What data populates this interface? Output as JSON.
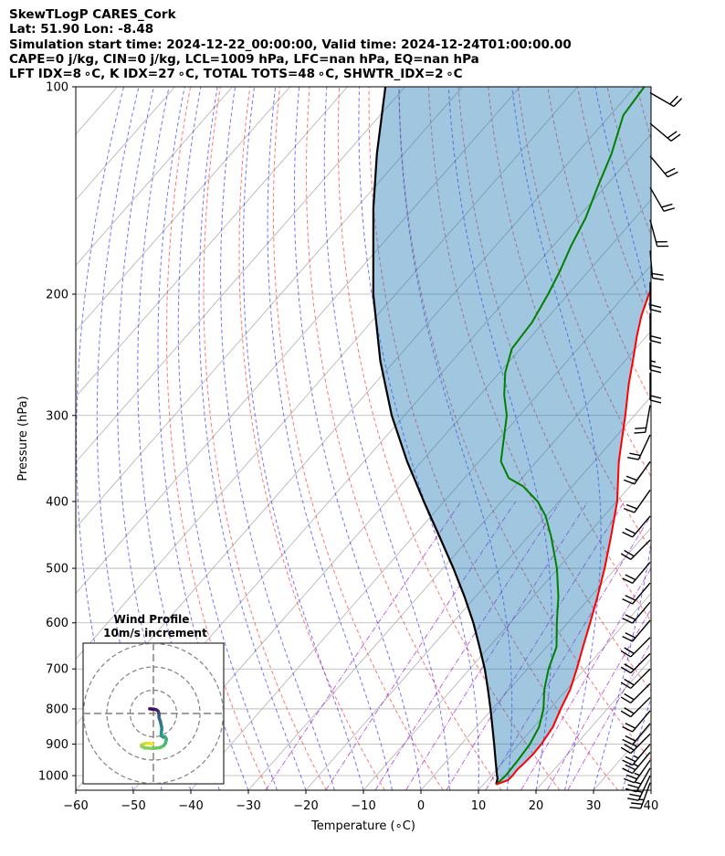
{
  "title": {
    "line1": "SkewTLogP CARES_Cork",
    "line2": "Lat: 51.90   Lon: -8.48",
    "line3": "Simulation start time: 2024-12-22_00:00:00, Valid time: 2024-12-24T01:00:00.00",
    "line4": "CAPE=0 j/kg, CIN=0 j/kg, LCL=1009 hPa, LFC=nan hPa, EQ=nan hPa",
    "line5": "LFT IDX=8 ∘C, K IDX=27 ∘C, TOTAL TOTS=48 ∘C, SHWTR_IDX=2 ∘C"
  },
  "chart_data": {
    "type": "skew-t log-p",
    "xlabel": "Temperature (∘C)",
    "ylabel": "Pressure (hPa)",
    "xlim": [
      -60,
      40
    ],
    "ylim": [
      1050,
      100
    ],
    "x_ticks": [
      "−60",
      "−50",
      "−40",
      "−30",
      "−20",
      "−10",
      "0",
      "10",
      "20",
      "30",
      "40"
    ],
    "x_tick_values": [
      -60,
      -50,
      -40,
      -30,
      -20,
      -10,
      0,
      10,
      20,
      30,
      40
    ],
    "y_ticks": [
      "100",
      "200",
      "300",
      "400",
      "500",
      "600",
      "700",
      "800",
      "900",
      "1000"
    ],
    "y_tick_values": [
      100,
      200,
      300,
      400,
      500,
      600,
      700,
      800,
      900,
      1000
    ],
    "skew_deg_per_decade": 105,
    "colors": {
      "temperature": "#ff0000",
      "dewpoint": "#008000",
      "parcel": "#000000",
      "shade": "#1f77b4",
      "dry_adiabat": "#ff0000",
      "moist_adiabat": "#0000ff",
      "isotherm": "#808080",
      "mixing_ratio": "#9400d3",
      "wind_barb": "#000000"
    },
    "temperature": {
      "name": "Temperature",
      "p": [
        1030,
        1015,
        1000,
        980,
        960,
        930,
        900,
        850,
        800,
        750,
        700,
        650,
        600,
        550,
        500,
        450,
        400,
        350,
        300,
        270,
        250,
        230,
        215,
        200,
        185,
        175,
        165,
        155,
        145,
        135,
        120,
        110,
        100
      ],
      "t": [
        12.2,
        13.6,
        13.7,
        13.6,
        13.8,
        14.0,
        13.9,
        13.3,
        11.9,
        10.6,
        8.6,
        6.3,
        3.9,
        1.2,
        -1.9,
        -5.6,
        -9.9,
        -15.7,
        -21.6,
        -25.8,
        -28.6,
        -31.7,
        -34.0,
        -36.0,
        -37.4,
        -38.1,
        -38.4,
        -39.2,
        -40.0,
        -41.6,
        -44.5,
        -46.4,
        -48.4
      ]
    },
    "dewpoint": {
      "name": "Dewpoint",
      "p": [
        1030,
        1000,
        950,
        900,
        850,
        800,
        750,
        700,
        650,
        600,
        550,
        500,
        450,
        420,
        400,
        380,
        370,
        350,
        330,
        300,
        280,
        260,
        240,
        220,
        200,
        185,
        170,
        155,
        140,
        125,
        110,
        100
      ],
      "t": [
        12.2,
        12.5,
        12.3,
        11.9,
        10.9,
        8.9,
        6.1,
        3.7,
        1.7,
        -1.9,
        -5.6,
        -10.2,
        -16.0,
        -20.1,
        -23.7,
        -28.6,
        -32.3,
        -36.2,
        -38.5,
        -42.2,
        -45.8,
        -49.0,
        -51.5,
        -52.0,
        -53.5,
        -55.0,
        -56.9,
        -58.6,
        -61.2,
        -63.9,
        -67.7,
        -68.4
      ]
    },
    "parcel": {
      "name": "Parcel profile",
      "p": [
        1030,
        1009,
        1000,
        950,
        900,
        850,
        800,
        750,
        700,
        650,
        600,
        550,
        500,
        450,
        400,
        350,
        300,
        250,
        200,
        150,
        125,
        100
      ],
      "t": [
        12.2,
        11.5,
        11.0,
        8.4,
        5.7,
        2.8,
        -0.3,
        -3.7,
        -7.4,
        -11.7,
        -16.4,
        -21.9,
        -28.2,
        -35.4,
        -43.5,
        -52.5,
        -62.2,
        -72.5,
        -83.9,
        -97.0,
        -104.7,
        -113.4
      ]
    },
    "wind_barbs": [
      {
        "p": 1024,
        "speed_kt": 25,
        "dir_deg": 200
      },
      {
        "p": 1000,
        "speed_kt": 25,
        "dir_deg": 205
      },
      {
        "p": 975,
        "speed_kt": 25,
        "dir_deg": 210
      },
      {
        "p": 950,
        "speed_kt": 25,
        "dir_deg": 215
      },
      {
        "p": 925,
        "speed_kt": 25,
        "dir_deg": 220
      },
      {
        "p": 900,
        "speed_kt": 25,
        "dir_deg": 220
      },
      {
        "p": 870,
        "speed_kt": 25,
        "dir_deg": 225
      },
      {
        "p": 840,
        "speed_kt": 20,
        "dir_deg": 220
      },
      {
        "p": 805,
        "speed_kt": 20,
        "dir_deg": 220
      },
      {
        "p": 770,
        "speed_kt": 20,
        "dir_deg": 225
      },
      {
        "p": 735,
        "speed_kt": 20,
        "dir_deg": 225
      },
      {
        "p": 700,
        "speed_kt": 20,
        "dir_deg": 225
      },
      {
        "p": 665,
        "speed_kt": 20,
        "dir_deg": 225
      },
      {
        "p": 630,
        "speed_kt": 20,
        "dir_deg": 225
      },
      {
        "p": 595,
        "speed_kt": 20,
        "dir_deg": 220
      },
      {
        "p": 560,
        "speed_kt": 20,
        "dir_deg": 220
      },
      {
        "p": 525,
        "speed_kt": 20,
        "dir_deg": 220
      },
      {
        "p": 490,
        "speed_kt": 20,
        "dir_deg": 220
      },
      {
        "p": 455,
        "speed_kt": 20,
        "dir_deg": 225
      },
      {
        "p": 420,
        "speed_kt": 20,
        "dir_deg": 220
      },
      {
        "p": 385,
        "speed_kt": 20,
        "dir_deg": 215
      },
      {
        "p": 350,
        "speed_kt": 20,
        "dir_deg": 215
      },
      {
        "p": 320,
        "speed_kt": 20,
        "dir_deg": 205
      },
      {
        "p": 290,
        "speed_kt": 20,
        "dir_deg": 190
      },
      {
        "p": 260,
        "speed_kt": 20,
        "dir_deg": 180
      },
      {
        "p": 235,
        "speed_kt": 25,
        "dir_deg": 180
      },
      {
        "p": 213,
        "speed_kt": 20,
        "dir_deg": 180
      },
      {
        "p": 192,
        "speed_kt": 20,
        "dir_deg": 180
      },
      {
        "p": 173,
        "speed_kt": 20,
        "dir_deg": 175
      },
      {
        "p": 156,
        "speed_kt": 20,
        "dir_deg": 165
      },
      {
        "p": 140,
        "speed_kt": 20,
        "dir_deg": 150
      },
      {
        "p": 126,
        "speed_kt": 20,
        "dir_deg": 140
      },
      {
        "p": 113,
        "speed_kt": 20,
        "dir_deg": 130
      },
      {
        "p": 102,
        "speed_kt": 20,
        "dir_deg": 120
      }
    ],
    "hodograph": {
      "title": "Wind Profile",
      "subtitle": "10m/s increment",
      "ring_step_ms": 10,
      "rings": 3,
      "u": [
        -0.4,
        -1.6,
        -3.2,
        -4.4,
        -5.2,
        -5.0,
        -3.8,
        0.2,
        3.0,
        4.4,
        5.2,
        5.6,
        5.0,
        4.2,
        3.4,
        3.4,
        3.6,
        3.5,
        3.2,
        3.0,
        2.6,
        2.4,
        2.4,
        2.3,
        2.2,
        2.0,
        1.6,
        1.0,
        0.4,
        -0.6,
        -1.6
      ],
      "v": [
        -13.2,
        -12.8,
        -12.8,
        -13.2,
        -13.6,
        -14.2,
        -14.8,
        -15.0,
        -14.6,
        -13.8,
        -12.8,
        -11.0,
        -10.0,
        -10.2,
        -9.6,
        -8.2,
        -6.8,
        -5.6,
        -4.4,
        -3.4,
        -2.4,
        -1.6,
        -0.8,
        0.0,
        0.6,
        1.0,
        1.4,
        1.7,
        1.8,
        1.9,
        2.0
      ]
    }
  }
}
